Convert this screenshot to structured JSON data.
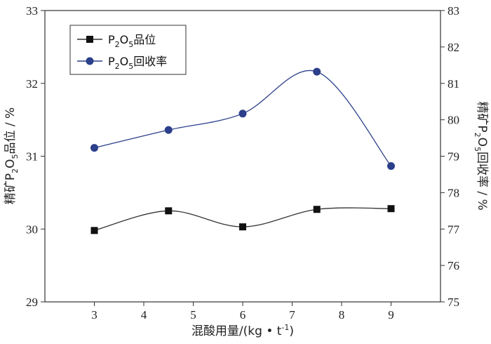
{
  "chart_data": {
    "type": "line",
    "title": "",
    "x": [
      3,
      4.5,
      6,
      7.5,
      9
    ],
    "xlim": [
      2,
      10
    ],
    "xticks": [
      "3",
      "4",
      "5",
      "6",
      "7",
      "8",
      "9"
    ],
    "xlabel": "混酸用量/(kg • t",
    "xlabel_sup": "-1",
    "xlabel_end": ")",
    "left_axis": {
      "ylim": [
        29,
        33
      ],
      "ticks": [
        "29",
        "30",
        "31",
        "32",
        "33"
      ],
      "label_prefix": "精矿P",
      "label_sub": "2",
      "label_mid": "O",
      "label_sub2": "5",
      "label_suffix": "品位 / %"
    },
    "right_axis": {
      "ylim": [
        75,
        83
      ],
      "ticks": [
        "75",
        "76",
        "77",
        "78",
        "79",
        "80",
        "81",
        "82",
        "83"
      ],
      "label_prefix": "精矿P",
      "label_sub": "2",
      "label_mid": "O",
      "label_sub2": "5",
      "label_suffix": "回收率 / %"
    },
    "series": [
      {
        "name_prefix": "P",
        "name_sub": "2",
        "name_mid": "O",
        "name_sub2": "5",
        "name_suffix": "品位",
        "axis": "left",
        "marker": "square",
        "color": "#333333",
        "values": [
          29.98,
          30.25,
          30.03,
          30.27,
          30.28
        ]
      },
      {
        "name_prefix": "P",
        "name_sub": "2",
        "name_mid": "O",
        "name_sub2": "5",
        "name_suffix": "回收率",
        "axis": "right",
        "marker": "circle",
        "color": "#2b3f8a",
        "values": [
          79.23,
          79.72,
          80.17,
          81.32,
          78.73
        ]
      }
    ],
    "legend_position": "top-left"
  }
}
